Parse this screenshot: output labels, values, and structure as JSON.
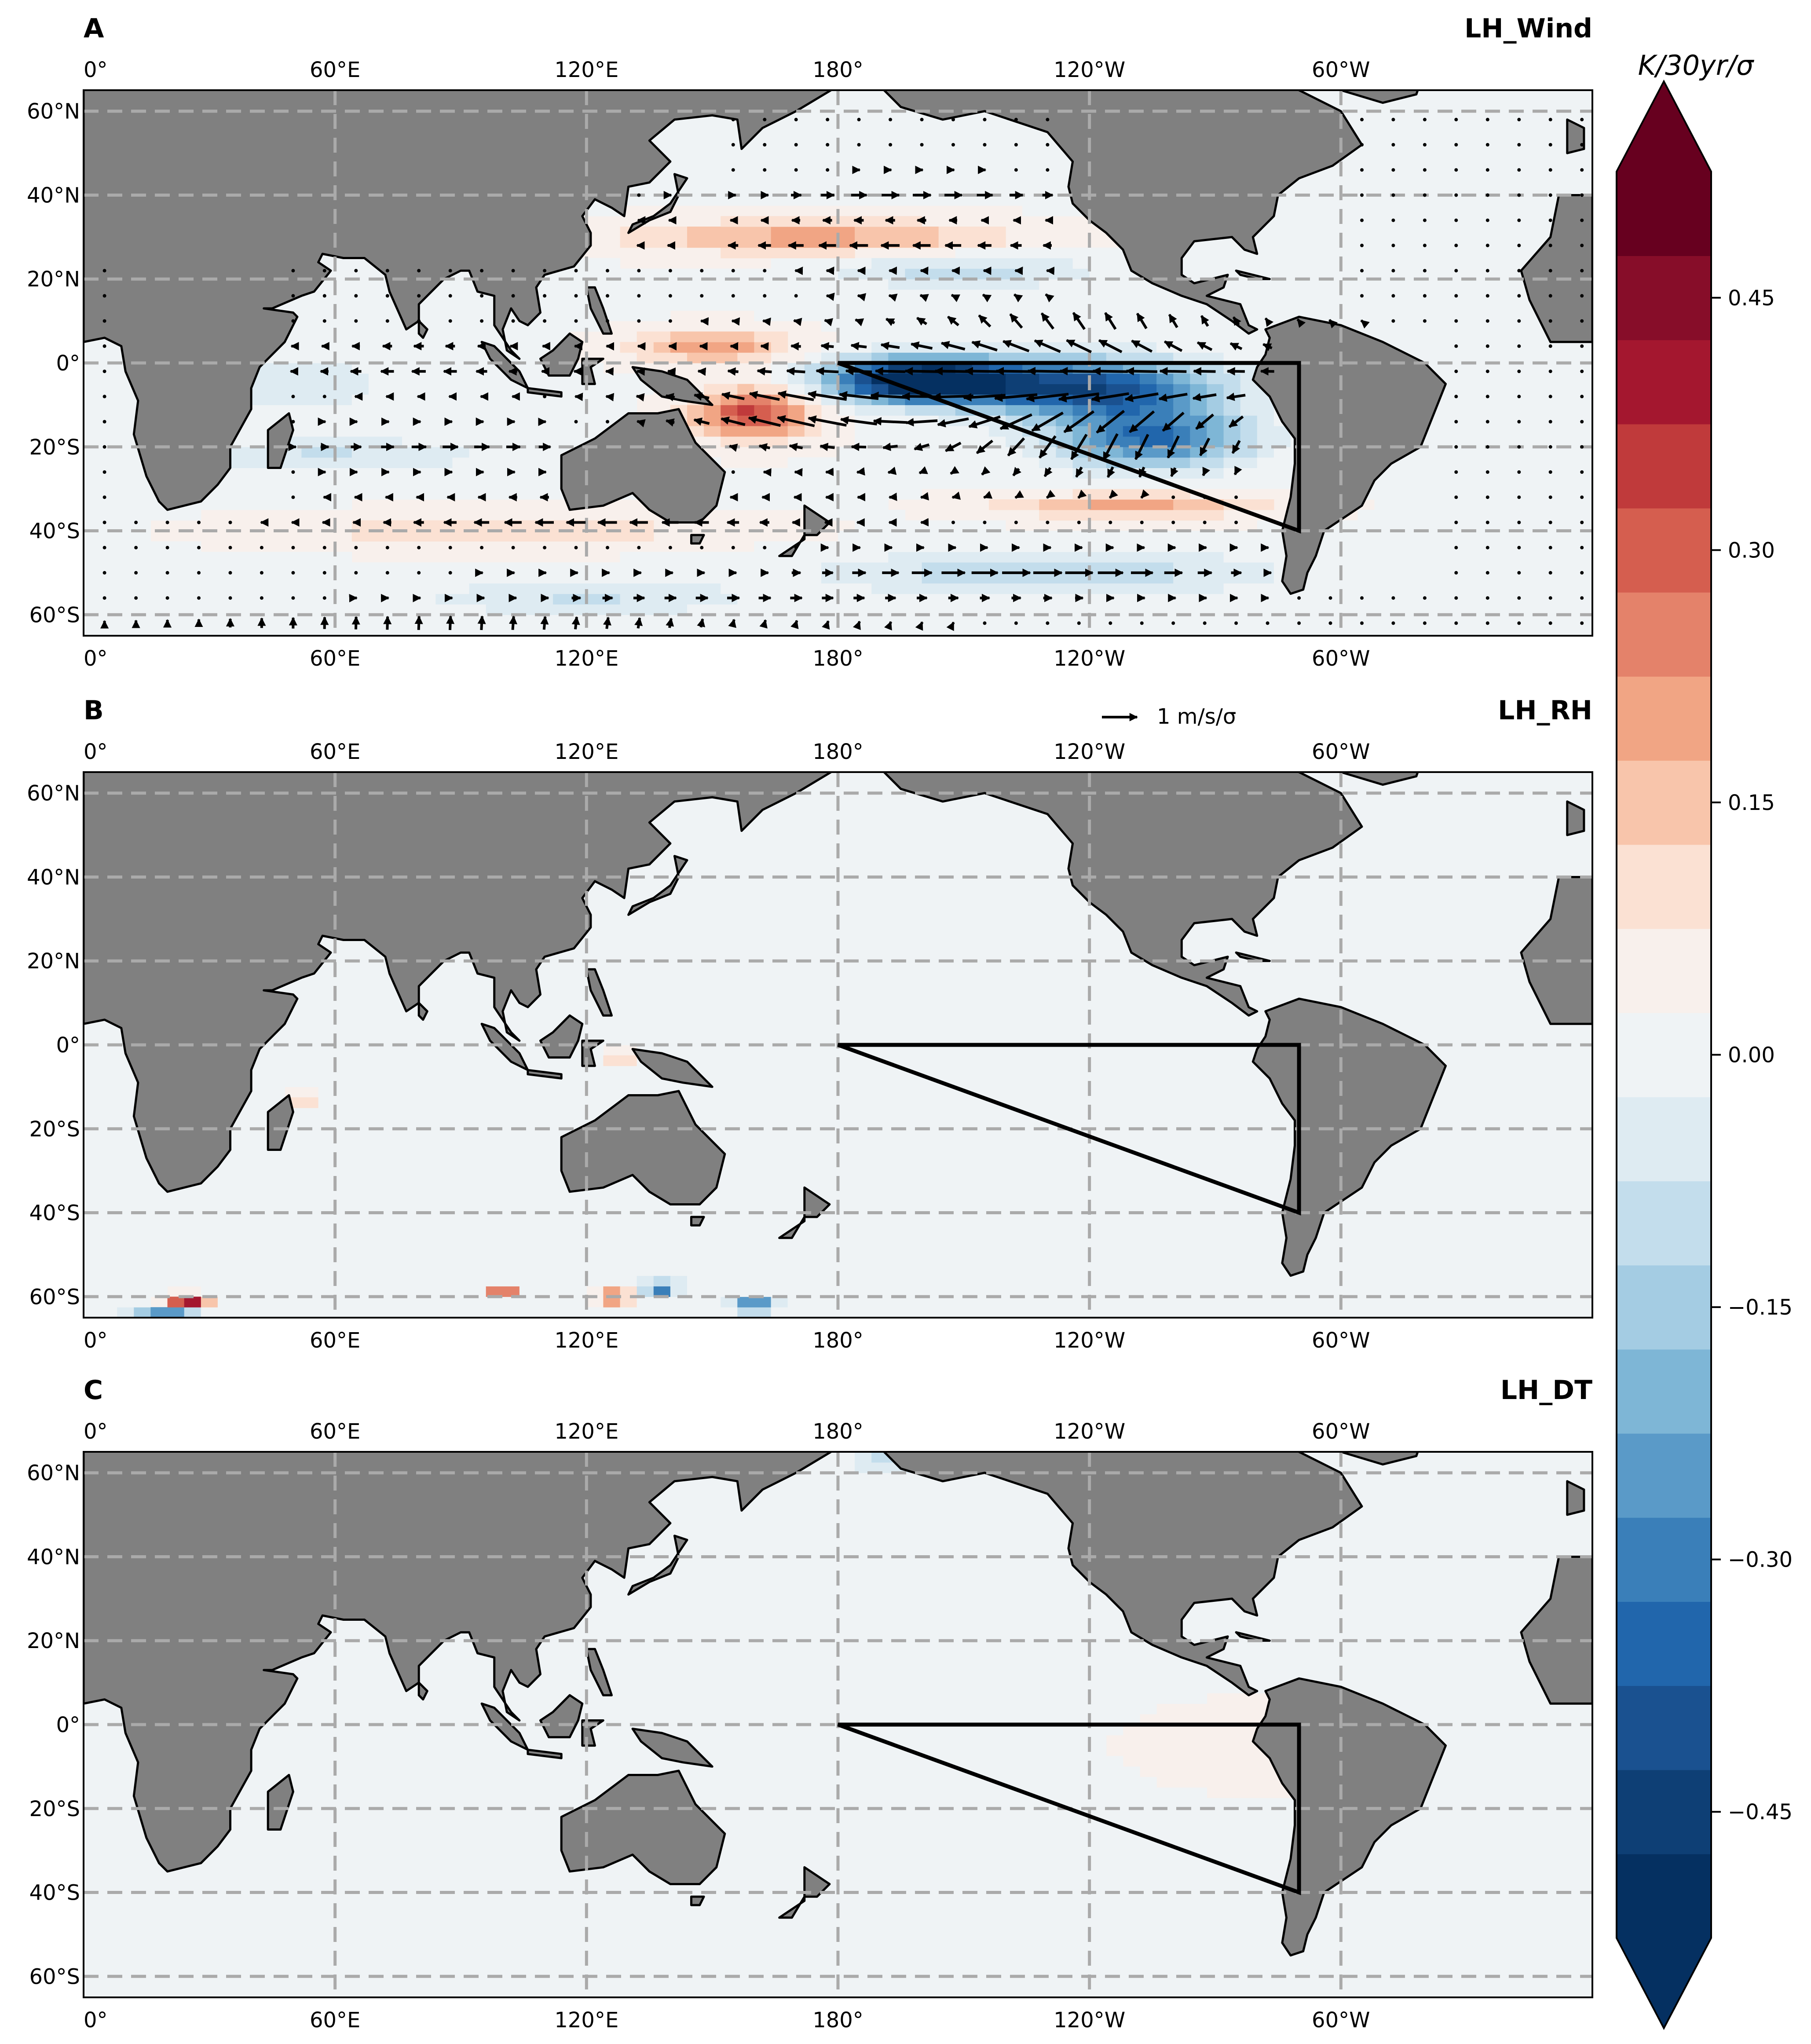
{
  "colorbar": {
    "unit": "K/30yr/σ",
    "ticks": [
      {
        "label": "0.45",
        "value": 0.45
      },
      {
        "label": "0.30",
        "value": 0.3
      },
      {
        "label": "0.15",
        "value": 0.15
      },
      {
        "label": "0.00",
        "value": 0.0
      },
      {
        "label": "−0.15",
        "value": -0.15
      },
      {
        "label": "−0.30",
        "value": -0.3
      },
      {
        "label": "−0.45",
        "value": -0.45
      }
    ],
    "range": [
      -0.525,
      0.525
    ],
    "levels": 21,
    "colors": [
      "#053061",
      "#0e3f75",
      "#1a5190",
      "#2166ac",
      "#3a7fb9",
      "#5a9ac8",
      "#7eb6d6",
      "#a4cce3",
      "#c3ddec",
      "#deebf2",
      "#eff3f5",
      "#f8f0ec",
      "#fbe1d3",
      "#f8c5ab",
      "#f1a584",
      "#e4826a",
      "#d55e4f",
      "#c03a3b",
      "#a4172f",
      "#870d29",
      "#67001f"
    ]
  },
  "vector_key": {
    "text": "1 m/s/σ"
  },
  "map": {
    "lon_ticks": [
      {
        "label": "0°",
        "lon": 0
      },
      {
        "label": "60°E",
        "lon": 60
      },
      {
        "label": "120°E",
        "lon": 120
      },
      {
        "label": "180°",
        "lon": 180
      },
      {
        "label": "120°W",
        "lon": 240
      },
      {
        "label": "60°W",
        "lon": 300
      }
    ],
    "lat_ticks": [
      {
        "label": "60°N",
        "lat": 60
      },
      {
        "label": "40°N",
        "lat": 40
      },
      {
        "label": "20°N",
        "lat": 20
      },
      {
        "label": "0°",
        "lat": 0
      },
      {
        "label": "20°S",
        "lat": -20
      },
      {
        "label": "40°S",
        "lat": -40
      },
      {
        "label": "60°S",
        "lat": -60
      }
    ],
    "lon_range": [
      0,
      360
    ],
    "lat_range": [
      -65,
      65
    ],
    "triangle": [
      [
        180,
        0
      ],
      [
        290,
        0
      ],
      [
        290,
        -40
      ]
    ],
    "grid": true
  },
  "panels": [
    {
      "label": "A",
      "title": "LH_Wind",
      "has_wind": true
    },
    {
      "label": "B",
      "title": "LH_RH",
      "has_wind": false
    },
    {
      "label": "C",
      "title": "LH_DT",
      "has_wind": false
    }
  ]
}
